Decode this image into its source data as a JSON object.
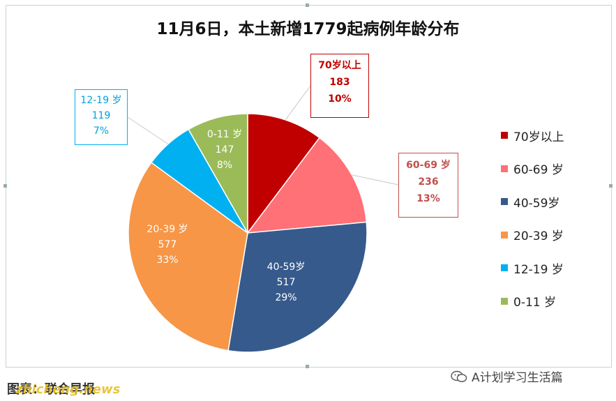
{
  "chart_data": {
    "type": "pie",
    "title": "11月6日，本土新增1779起病例年龄分布",
    "slices": [
      {
        "name": "70岁以上",
        "value": 183,
        "percent": "10%",
        "color": "#c00000"
      },
      {
        "name": "60-69 岁",
        "value": 236,
        "percent": "13%",
        "color": "#ff7077"
      },
      {
        "name": "40-59岁",
        "value": 517,
        "percent": "29%",
        "color": "#365a8c"
      },
      {
        "name": "20-39 岁",
        "value": 577,
        "percent": "33%",
        "color": "#f79646"
      },
      {
        "name": "12-19 岁",
        "value": 119,
        "percent": "7%",
        "color": "#00b0f0"
      },
      {
        "name": "0-11 岁",
        "value": 147,
        "percent": "8%",
        "color": "#9bbb59"
      }
    ],
    "legend": {
      "placement": "right",
      "entries": [
        "70岁以上",
        "60-69 岁",
        "40-59岁",
        "20-39 岁",
        "12-19 岁",
        "0-11 岁"
      ]
    },
    "labels": {
      "s0": {
        "name": "70岁以上",
        "value": "183",
        "pct": "10%"
      },
      "s1": {
        "name": "60-69 岁",
        "value": "236",
        "pct": "13%"
      },
      "s2": {
        "name": "40-59岁",
        "value": "517",
        "pct": "29%"
      },
      "s3": {
        "name": "20-39 岁",
        "value": "577",
        "pct": "33%"
      },
      "s4": {
        "name": "12-19 岁",
        "value": "119",
        "pct": "7%"
      },
      "s5": {
        "name": "0-11 岁",
        "value": "147",
        "pct": "8%"
      }
    }
  },
  "footer": {
    "source": "图表：联合早报",
    "watermark": "zhicheng.news",
    "account": "A计划学习生活篇"
  },
  "icons": {
    "wechat": "wechat-icon"
  }
}
